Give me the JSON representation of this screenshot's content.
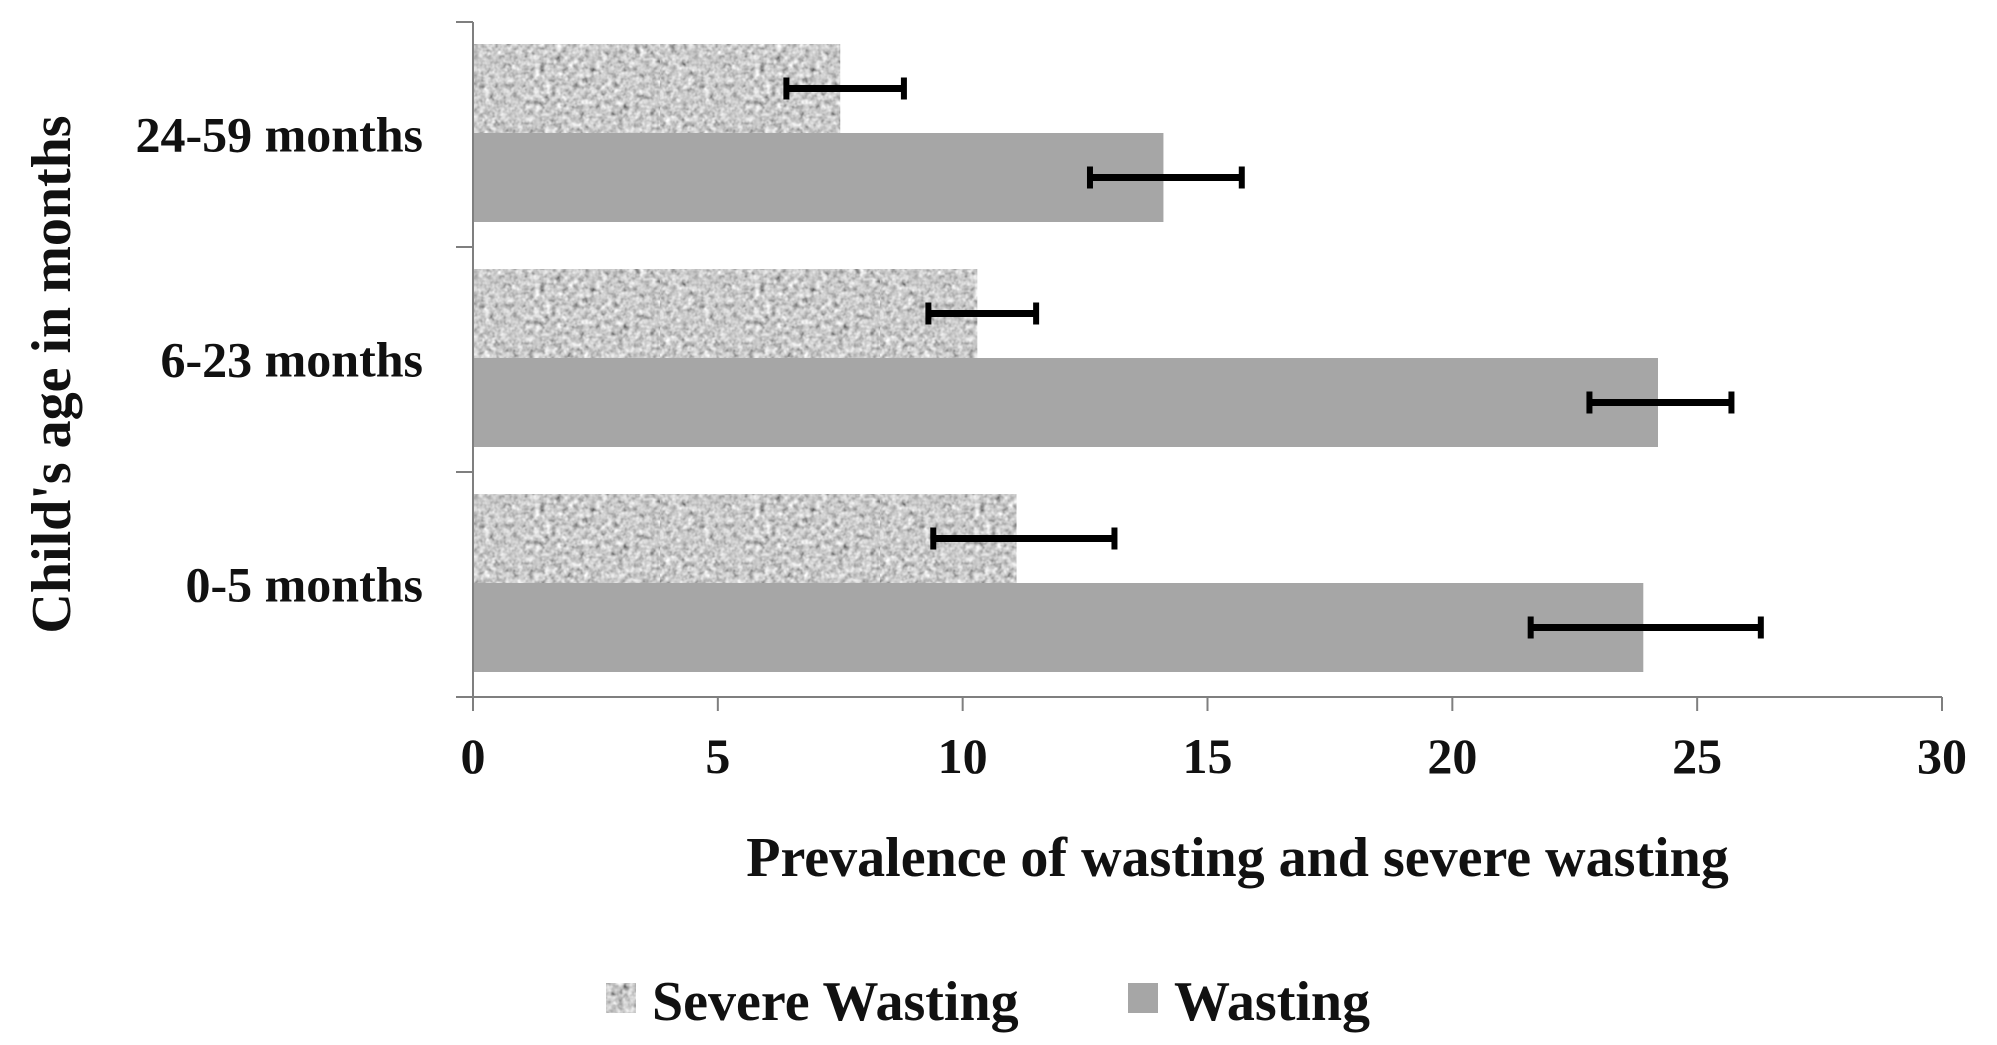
{
  "chart_data": {
    "type": "bar",
    "orientation": "horizontal",
    "title": "",
    "xlabel": "Prevalence of wasting and severe wasting",
    "ylabel": "Child's age in months",
    "categories": [
      "0-5 months",
      "6-23 months",
      "24-59 months"
    ],
    "xlim": [
      0,
      30
    ],
    "xticks": [
      0,
      5,
      10,
      15,
      20,
      25,
      30
    ],
    "grid": false,
    "legend_position": "bottom",
    "series": [
      {
        "name": "Severe Wasting",
        "pattern": "speckled",
        "color": "#8c8c8c",
        "values": [
          11.1,
          10.3,
          7.5
        ],
        "error_low": [
          9.4,
          9.3,
          6.4
        ],
        "error_high": [
          13.1,
          11.5,
          8.8
        ]
      },
      {
        "name": "Wasting",
        "pattern": "solid",
        "color": "#a6a6a6",
        "values": [
          23.9,
          24.2,
          14.1
        ],
        "error_low": [
          21.6,
          22.8,
          12.6
        ],
        "error_high": [
          26.3,
          25.7,
          15.7
        ]
      }
    ]
  }
}
